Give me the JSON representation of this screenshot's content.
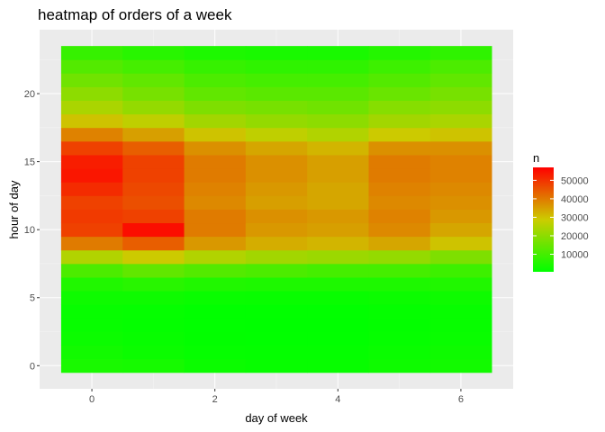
{
  "chart_data": {
    "type": "heatmap",
    "title": "heatmap of orders of a week",
    "xlabel": "day of week",
    "ylabel": "hour of day",
    "x": [
      0,
      1,
      2,
      3,
      4,
      5,
      6
    ],
    "y": [
      0,
      1,
      2,
      3,
      4,
      5,
      6,
      7,
      8,
      9,
      10,
      11,
      12,
      13,
      14,
      15,
      16,
      17,
      18,
      19,
      20,
      21,
      22,
      23
    ],
    "xlim": [
      -0.5,
      6.5
    ],
    "ylim": [
      -0.5,
      23.5
    ],
    "x_ticks": [
      0,
      2,
      4,
      6
    ],
    "y_ticks": [
      0,
      5,
      10,
      15,
      20
    ],
    "x_tick_labels": [
      "0",
      "2",
      "4",
      "6"
    ],
    "y_tick_labels": [
      "0",
      "5",
      "10",
      "15",
      "20"
    ],
    "grid": true,
    "values": [
      [
        4000,
        3500,
        2000,
        1500,
        1500,
        2500,
        3000
      ],
      [
        3000,
        2000,
        1200,
        1000,
        1000,
        1800,
        2500
      ],
      [
        2000,
        1500,
        800,
        700,
        700,
        1200,
        1800
      ],
      [
        1500,
        1000,
        600,
        500,
        500,
        900,
        1500
      ],
      [
        1500,
        1200,
        700,
        600,
        600,
        1000,
        1500
      ],
      [
        2500,
        2500,
        1800,
        1600,
        1600,
        2000,
        2500
      ],
      [
        5000,
        6000,
        5000,
        4500,
        4500,
        4500,
        5000
      ],
      [
        11000,
        14000,
        12000,
        11000,
        10000,
        10000,
        9000
      ],
      [
        25000,
        29000,
        25000,
        23000,
        22000,
        21000,
        18000
      ],
      [
        40000,
        44000,
        36000,
        33000,
        32000,
        34000,
        30000
      ],
      [
        48000,
        55000,
        40000,
        36000,
        35000,
        38000,
        34000
      ],
      [
        49000,
        48000,
        40000,
        37000,
        36000,
        39000,
        36000
      ],
      [
        48000,
        46000,
        38000,
        35000,
        34000,
        38000,
        37000
      ],
      [
        51000,
        47000,
        39000,
        36000,
        34000,
        39000,
        38000
      ],
      [
        54000,
        48000,
        40000,
        37000,
        35000,
        40000,
        39000
      ],
      [
        53000,
        48000,
        40000,
        37000,
        35000,
        40000,
        39000
      ],
      [
        48000,
        44000,
        37000,
        34000,
        32000,
        37000,
        37000
      ],
      [
        39000,
        35000,
        30000,
        27000,
        25000,
        29000,
        30000
      ],
      [
        30000,
        27000,
        23000,
        21000,
        20000,
        23000,
        24000
      ],
      [
        24000,
        21000,
        18000,
        17000,
        16000,
        19000,
        20000
      ],
      [
        20000,
        17000,
        14000,
        13000,
        13000,
        15000,
        17000
      ],
      [
        16000,
        14000,
        11000,
        10000,
        10000,
        12000,
        14000
      ],
      [
        12000,
        10000,
        8000,
        7000,
        7000,
        9000,
        11000
      ],
      [
        8000,
        6000,
        4500,
        4000,
        4000,
        5500,
        7000
      ]
    ],
    "colorbar": {
      "title": "n",
      "low_color": "#00ff00",
      "mid_color": "#cccc00",
      "high_color": "#ff0000",
      "min": 500,
      "max": 57000,
      "ticks": [
        10000,
        20000,
        30000,
        40000,
        50000
      ],
      "tick_labels": [
        "10000",
        "20000",
        "30000",
        "40000",
        "50000"
      ]
    },
    "legend_position": "right",
    "colors": {
      "panel_background": "#ebebeb",
      "grid_major": "#ffffff",
      "grid_minor": "#f5f5f5"
    }
  }
}
